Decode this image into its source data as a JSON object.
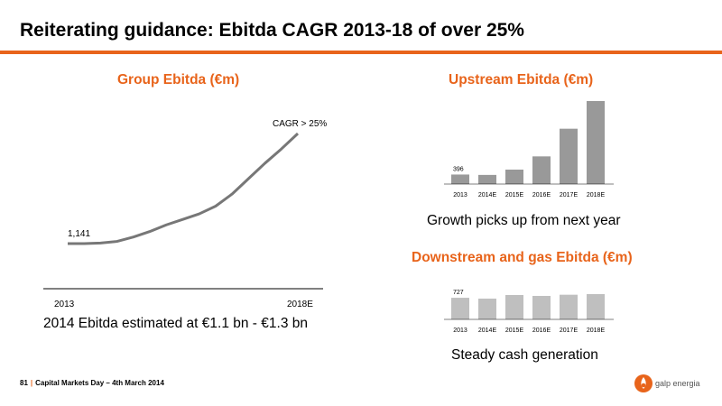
{
  "slide": {
    "title": "Reiterating guidance: Ebitda CAGR 2013-18 of over 25%",
    "accent_color": "#e8641b"
  },
  "footer": {
    "page_number": "81",
    "text": "Capital Markets Day – 4th March 2014",
    "logo_text": "galp energia",
    "logo_icon": "galp-flame-icon"
  },
  "group": {
    "title": "Group Ebitda (€m)",
    "caption": "2014 Ebitda estimated at €1.1 bn - €1.3 bn"
  },
  "upstream": {
    "title": "Upstream Ebitda (€m)",
    "caption": "Growth picks up from next year"
  },
  "downstream": {
    "title": "Downstream and gas Ebitda (€m)",
    "caption": "Steady cash generation"
  },
  "chart_data": [
    {
      "id": "group",
      "type": "line",
      "x_ticks": [
        "2013",
        "2018E"
      ],
      "y_start": 1141,
      "start_label": "1,141",
      "annotation": "CAGR > 25%",
      "color": "#777777",
      "grid": false
    },
    {
      "id": "upstream",
      "type": "bar",
      "categories": [
        "2013",
        "2014E",
        "2015E",
        "2016E",
        "2017E",
        "2018E"
      ],
      "values": [
        396,
        380,
        600,
        1150,
        2300,
        3450
      ],
      "data_labels": [
        "396",
        "",
        "",
        "",
        "",
        ""
      ],
      "color": "#999999",
      "grid": false
    },
    {
      "id": "downstream",
      "type": "bar",
      "categories": [
        "2013",
        "2014E",
        "2015E",
        "2016E",
        "2017E",
        "2018E"
      ],
      "values": [
        727,
        700,
        820,
        790,
        830,
        850
      ],
      "data_labels": [
        "727",
        "",
        "",
        "",
        "",
        ""
      ],
      "color": "#bfbfbf",
      "grid": false
    }
  ]
}
